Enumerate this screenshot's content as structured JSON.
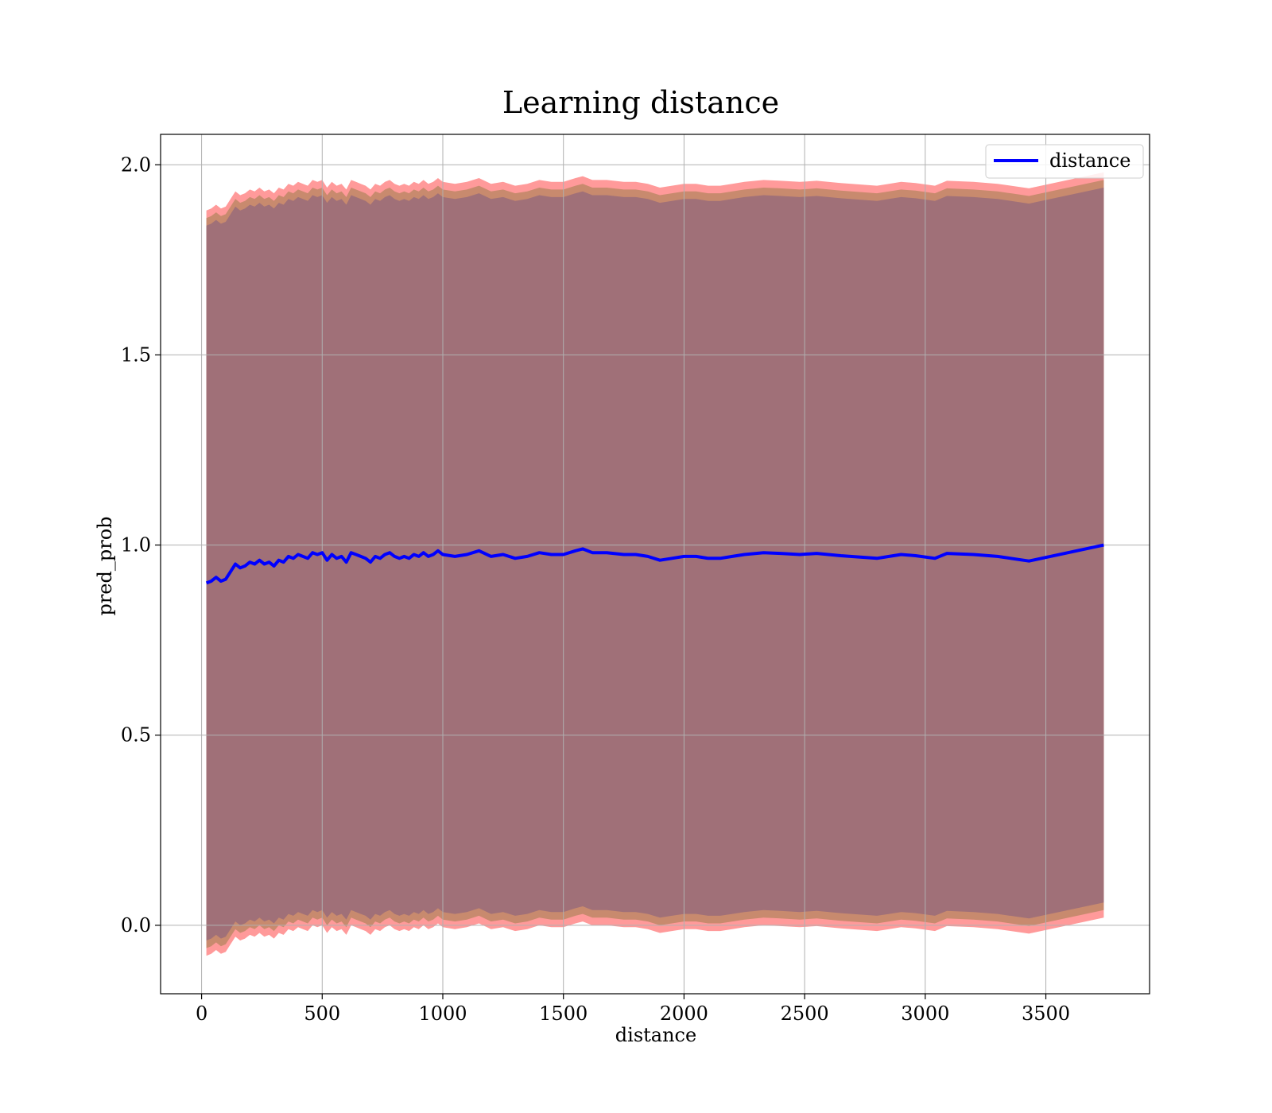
{
  "chart_data": {
    "type": "line",
    "title": "Learning distance",
    "xlabel": "distance",
    "ylabel": "pred_prob",
    "xlim": [
      -170,
      3930
    ],
    "ylim": [
      -0.18,
      2.08
    ],
    "xticks": [
      "0",
      "500",
      "1000",
      "1500",
      "2000",
      "2500",
      "3000",
      "3500"
    ],
    "xtick_values": [
      0,
      500,
      1000,
      1500,
      2000,
      2500,
      3000,
      3500
    ],
    "yticks": [
      "0.0",
      "0.5",
      "1.0",
      "1.5",
      "2.0"
    ],
    "ytick_values": [
      0.0,
      0.5,
      1.0,
      1.5,
      2.0
    ],
    "grid": true,
    "legend_position": "top-right",
    "colors": {
      "line": "#0000ff",
      "outer_band": "#ff9a9a",
      "middle_band": "#c88a6e",
      "inner_band": "#a07078",
      "grid": "#b0b0b0"
    },
    "series": [
      {
        "name": "distance",
        "x": [
          20,
          40,
          60,
          80,
          100,
          120,
          140,
          160,
          180,
          200,
          220,
          240,
          260,
          280,
          300,
          320,
          340,
          360,
          380,
          400,
          420,
          440,
          460,
          480,
          500,
          520,
          540,
          560,
          580,
          600,
          620,
          640,
          660,
          680,
          700,
          720,
          740,
          760,
          780,
          800,
          820,
          840,
          860,
          880,
          900,
          920,
          940,
          960,
          980,
          1000,
          1050,
          1100,
          1150,
          1200,
          1250,
          1300,
          1350,
          1400,
          1450,
          1500,
          1550,
          1580,
          1620,
          1680,
          1750,
          1800,
          1850,
          1900,
          1950,
          2000,
          2050,
          2100,
          2150,
          2200,
          2250,
          2330,
          2400,
          2480,
          2550,
          2650,
          2800,
          2850,
          2900,
          2960,
          3040,
          3090,
          3200,
          3300,
          3430,
          3740
        ],
        "values": [
          0.9,
          0.905,
          0.915,
          0.905,
          0.91,
          0.93,
          0.95,
          0.94,
          0.945,
          0.955,
          0.95,
          0.96,
          0.95,
          0.955,
          0.945,
          0.96,
          0.955,
          0.97,
          0.965,
          0.975,
          0.97,
          0.965,
          0.98,
          0.975,
          0.98,
          0.96,
          0.975,
          0.965,
          0.97,
          0.955,
          0.98,
          0.975,
          0.97,
          0.965,
          0.955,
          0.97,
          0.965,
          0.975,
          0.98,
          0.97,
          0.965,
          0.97,
          0.965,
          0.975,
          0.97,
          0.98,
          0.97,
          0.975,
          0.985,
          0.975,
          0.97,
          0.975,
          0.985,
          0.97,
          0.975,
          0.965,
          0.97,
          0.98,
          0.975,
          0.975,
          0.985,
          0.99,
          0.98,
          0.98,
          0.975,
          0.975,
          0.97,
          0.96,
          0.965,
          0.97,
          0.97,
          0.965,
          0.965,
          0.97,
          0.975,
          0.98,
          0.978,
          0.975,
          0.978,
          0.972,
          0.965,
          0.97,
          0.975,
          0.972,
          0.965,
          0.978,
          0.975,
          0.97,
          0.958,
          1.0
        ]
      }
    ],
    "bands": [
      {
        "upper_offset": 0.98,
        "lower_offset": 0.98,
        "color_key": "outer_band"
      },
      {
        "upper_offset": 0.96,
        "lower_offset": 0.96,
        "color_key": "middle_band"
      },
      {
        "upper_offset": 0.94,
        "lower_offset": 0.94,
        "color_key": "inner_band"
      }
    ]
  }
}
